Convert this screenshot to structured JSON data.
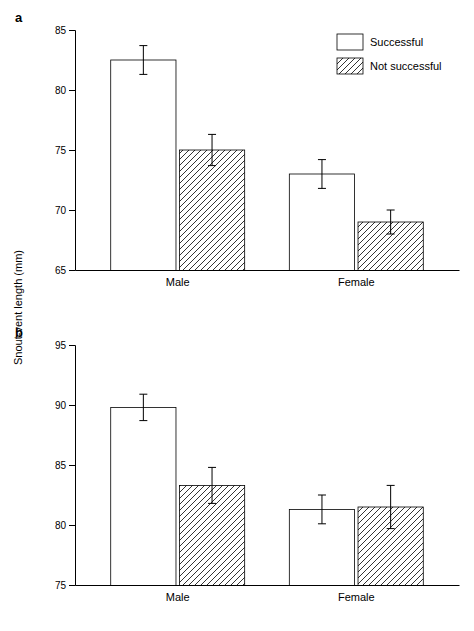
{
  "chart_data": [
    {
      "type": "bar",
      "title": "a",
      "ylabel": "Snout-vent length (mm)",
      "categories": [
        "Male",
        "Female"
      ],
      "series": [
        {
          "name": "Successful",
          "color": "#ffffff",
          "values": [
            82.5,
            73.0
          ],
          "errors": [
            1.2,
            1.2
          ]
        },
        {
          "name": "Not successful",
          "color": "#ffffff",
          "values": [
            75.0,
            69.0
          ],
          "errors": [
            1.3,
            1.0
          ]
        }
      ],
      "ylim": [
        65,
        85
      ],
      "yticks": [
        65,
        70,
        75,
        80,
        85
      ],
      "grid": false,
      "legend": "upper right"
    },
    {
      "type": "bar",
      "title": "b",
      "categories": [
        "Male",
        "Female"
      ],
      "series": [
        {
          "color": "#ffffff",
          "values": [
            89.8,
            81.3
          ],
          "errors": [
            1.1,
            1.2
          ]
        },
        {
          "color": "#ffffff",
          "values": [
            83.3,
            81.5
          ],
          "errors": [
            1.5,
            1.8
          ]
        }
      ],
      "ylim": [
        75,
        95
      ],
      "yticks": [
        75,
        80,
        85,
        90,
        95
      ],
      "grid": false
    }
  ]
}
